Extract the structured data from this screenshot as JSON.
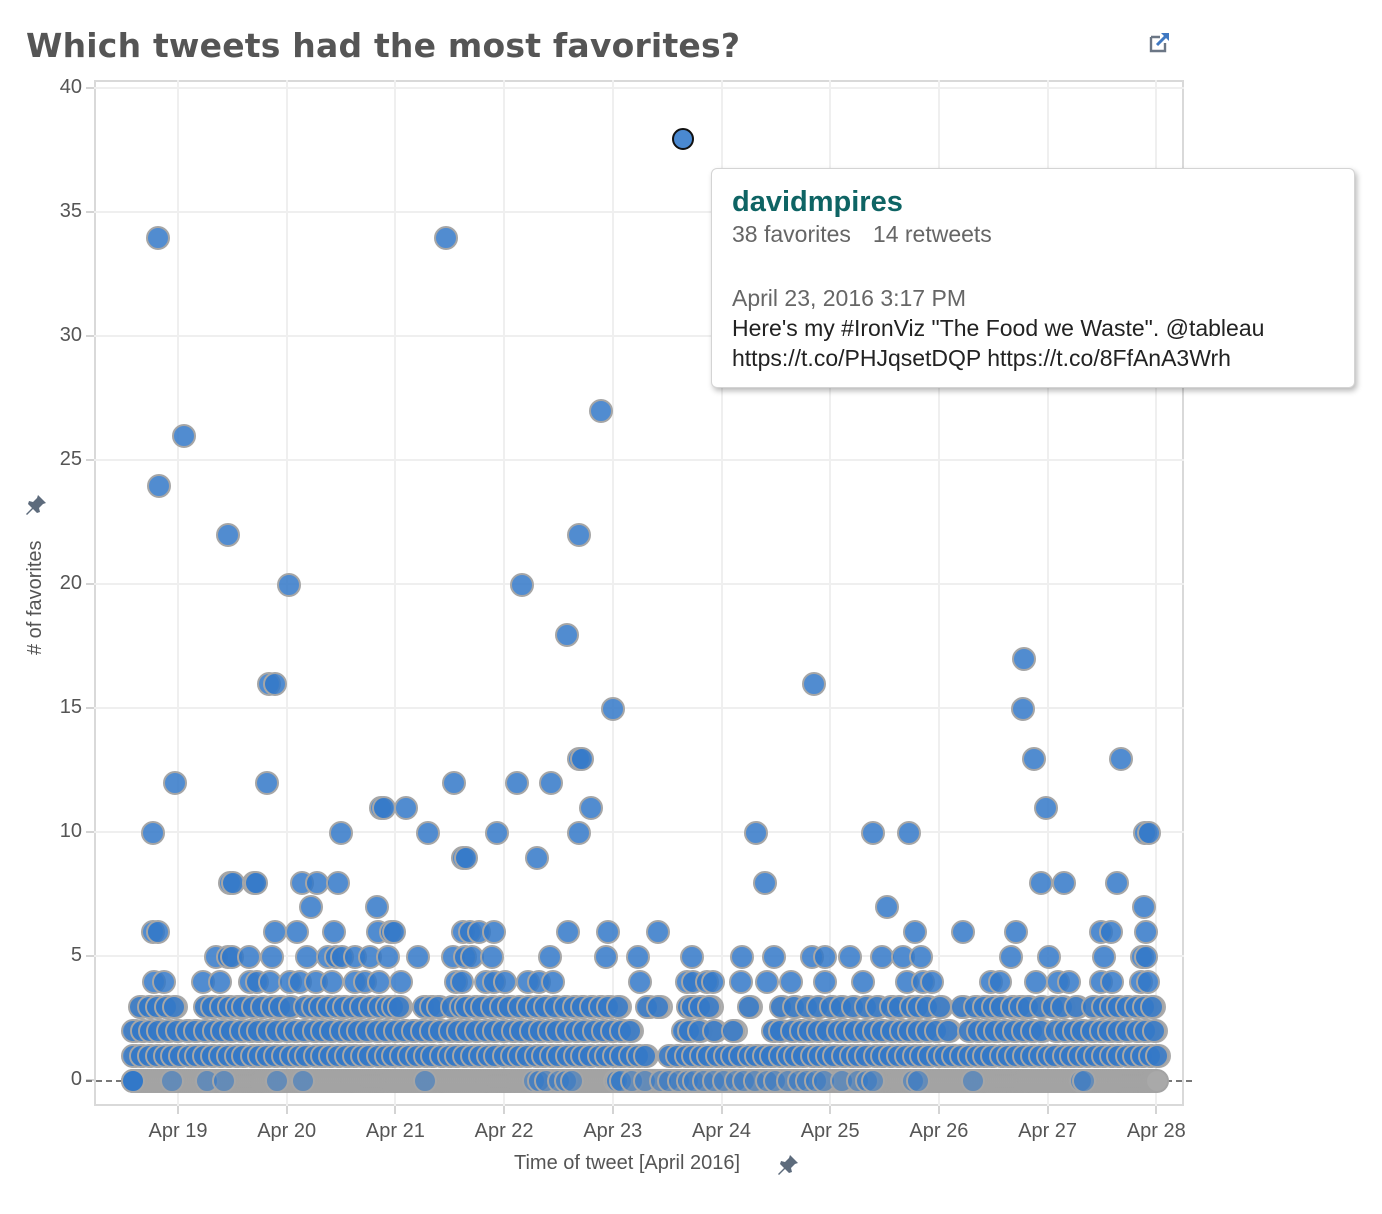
{
  "title": "Which tweets had the most favorites?",
  "toolbar": {
    "export_icon": "external-link-icon"
  },
  "axes": {
    "y_title": "# of favorites",
    "x_title": "Time of tweet [April 2016]",
    "pin_icon": "pushpin-icon",
    "y_ticks": [
      "40",
      "35",
      "30",
      "25",
      "20",
      "15",
      "10",
      "5",
      "0"
    ],
    "x_ticks": [
      "Apr 19",
      "Apr 20",
      "Apr 21",
      "Apr 22",
      "Apr 23",
      "Apr 24",
      "Apr 25",
      "Apr 26",
      "Apr 27",
      "Apr 28"
    ]
  },
  "colors": {
    "point": "#4a89d1",
    "point_dense": "#3278c8",
    "zero_point": "#a9a9a9",
    "title": "#555555",
    "tooltip_user": "#0e6464"
  },
  "tooltip": {
    "user": "davidmpires",
    "favorites": "38 favorites",
    "retweets": "14 retweets",
    "date": "April 23, 2016 3:17 PM",
    "text_line1": "Here's my #IronViz \"The Food we Waste\". @tableau",
    "text_line2": "https://t.co/PHJqsetDQP https://t.co/8FfAnA3Wrh"
  },
  "chart_data": {
    "type": "scatter",
    "title": "Which tweets had the most favorites?",
    "xlabel": "Time of tweet [April 2016]",
    "ylabel": "# of favorites",
    "ylim": [
      0,
      40
    ],
    "xlim_days": [
      18.2,
      28.3
    ],
    "x_tick_labels": [
      "Apr 19",
      "Apr 20",
      "Apr 21",
      "Apr 22",
      "Apr 23",
      "Apr 24",
      "Apr 25",
      "Apr 26",
      "Apr 27",
      "Apr 28"
    ],
    "y_tick_values": [
      0,
      5,
      10,
      15,
      20,
      25,
      30,
      35,
      40
    ],
    "grid": true,
    "highlighted_point": {
      "day": 23.64,
      "favorites": 38,
      "retweets": 14,
      "user": "davidmpires"
    },
    "points": [
      {
        "day": 18.81,
        "y": 34
      },
      {
        "day": 21.46,
        "y": 34
      },
      {
        "day": 22.88,
        "y": 27
      },
      {
        "day": 19.05,
        "y": 26
      },
      {
        "day": 18.82,
        "y": 24
      },
      {
        "day": 19.45,
        "y": 22
      },
      {
        "day": 22.68,
        "y": 22
      },
      {
        "day": 20.01,
        "y": 20
      },
      {
        "day": 22.16,
        "y": 20
      },
      {
        "day": 22.57,
        "y": 18
      },
      {
        "day": 26.77,
        "y": 17
      },
      {
        "day": 19.83,
        "y": 16
      },
      {
        "day": 19.88,
        "y": 16
      },
      {
        "day": 24.84,
        "y": 16
      },
      {
        "day": 22.99,
        "y": 15
      },
      {
        "day": 26.76,
        "y": 15
      },
      {
        "day": 22.68,
        "y": 13
      },
      {
        "day": 22.71,
        "y": 13
      },
      {
        "day": 26.87,
        "y": 13
      },
      {
        "day": 27.67,
        "y": 13
      },
      {
        "day": 18.96,
        "y": 12
      },
      {
        "day": 19.81,
        "y": 12
      },
      {
        "day": 21.53,
        "y": 12
      },
      {
        "day": 22.11,
        "y": 12
      },
      {
        "day": 22.42,
        "y": 12
      },
      {
        "day": 21.09,
        "y": 11
      },
      {
        "day": 20.86,
        "y": 11
      },
      {
        "day": 20.89,
        "y": 11
      },
      {
        "day": 22.79,
        "y": 11
      },
      {
        "day": 26.98,
        "y": 11
      },
      {
        "day": 18.76,
        "y": 10
      },
      {
        "day": 20.49,
        "y": 10
      },
      {
        "day": 21.29,
        "y": 10
      },
      {
        "day": 21.93,
        "y": 10
      },
      {
        "day": 22.68,
        "y": 10
      },
      {
        "day": 24.31,
        "y": 10
      },
      {
        "day": 25.38,
        "y": 10
      },
      {
        "day": 25.72,
        "y": 10
      },
      {
        "day": 27.89,
        "y": 10
      },
      {
        "day": 27.92,
        "y": 10
      },
      {
        "day": 21.61,
        "y": 9
      },
      {
        "day": 21.64,
        "y": 9
      },
      {
        "day": 22.29,
        "y": 9
      },
      {
        "day": 19.47,
        "y": 8
      },
      {
        "day": 19.5,
        "y": 8
      },
      {
        "day": 19.69,
        "y": 8
      },
      {
        "day": 19.71,
        "y": 8
      },
      {
        "day": 20.13,
        "y": 8
      },
      {
        "day": 20.27,
        "y": 8
      },
      {
        "day": 20.46,
        "y": 8
      },
      {
        "day": 24.39,
        "y": 8
      },
      {
        "day": 26.93,
        "y": 8
      },
      {
        "day": 27.14,
        "y": 8
      },
      {
        "day": 27.63,
        "y": 8
      },
      {
        "day": 20.21,
        "y": 7
      },
      {
        "day": 20.82,
        "y": 7
      },
      {
        "day": 25.51,
        "y": 7
      },
      {
        "day": 27.88,
        "y": 7
      }
    ],
    "dense_band_note": "Hundreds of overlapping tweets with 0-6 favorites spread across Apr 18.5-Apr 28"
  },
  "layout_points": {
    "mid": [
      [
        6,
        [
          18.76,
          18.81,
          19.88,
          20.09,
          20.43,
          20.83,
          20.95,
          20.98,
          21.61,
          21.68,
          21.76,
          21.9,
          22.58,
          22.95,
          23.41,
          25.77,
          26.21,
          26.7,
          27.48,
          27.57,
          27.9
        ]
      ],
      [
        5,
        [
          19.34,
          19.45,
          19.49,
          19.64,
          19.86,
          20.18,
          20.37,
          20.44,
          20.5,
          20.62,
          20.76,
          20.92,
          21.2,
          21.52,
          21.63,
          21.7,
          21.88,
          22.41,
          22.93,
          23.22,
          23.72,
          24.18,
          24.47,
          24.82,
          24.94,
          25.17,
          25.47,
          25.66,
          25.83,
          26.65,
          27.0,
          27.51,
          27.86,
          27.9
        ]
      ],
      [
        4,
        [
          18.77,
          18.86,
          19.22,
          19.38,
          19.65,
          19.72,
          19.84,
          20.02,
          20.11,
          20.26,
          20.41,
          20.62,
          20.71,
          20.84,
          21.04,
          21.55,
          21.6,
          21.82,
          21.9,
          22.0,
          22.21,
          22.31,
          22.44,
          23.24,
          23.67,
          23.73,
          23.86,
          23.91,
          24.17,
          24.41,
          24.63,
          24.94,
          25.29,
          25.7,
          25.84,
          25.93,
          26.47,
          26.55,
          26.88,
          27.09,
          27.19,
          27.48,
          27.58,
          27.85,
          27.91
        ]
      ]
    ],
    "low": [
      [
        3,
        [
          18.64,
          18.72,
          18.8,
          18.88,
          18.95,
          19.24,
          19.3,
          19.39,
          19.46,
          19.53,
          19.59,
          19.68,
          19.76,
          19.86,
          19.93,
          20.02,
          20.16,
          20.23,
          20.3,
          20.37,
          20.45,
          20.52,
          20.6,
          20.67,
          20.76,
          20.84,
          20.91,
          20.97,
          21.02,
          21.25,
          21.32,
          21.38,
          21.51,
          21.59,
          21.64,
          21.72,
          21.79,
          21.88,
          21.96,
          22.04,
          22.13,
          22.21,
          22.29,
          22.37,
          22.46,
          22.55,
          22.63,
          22.71,
          22.79,
          22.87,
          22.95,
          23.04,
          23.31,
          23.41,
          23.68,
          23.72,
          23.79,
          23.88,
          24.24,
          24.54,
          24.66,
          24.78,
          24.88,
          25.0,
          25.09,
          25.2,
          25.32,
          25.42,
          25.55,
          25.62,
          25.73,
          25.8,
          25.88,
          26.0,
          26.2,
          26.32,
          26.41,
          26.49,
          26.56,
          26.66,
          26.74,
          26.81,
          26.93,
          27.04,
          27.12,
          27.25,
          27.41,
          27.5,
          27.57,
          27.64,
          27.72,
          27.8,
          27.88,
          27.95
        ]
      ],
      [
        2,
        [
          18.58,
          18.66,
          18.73,
          18.81,
          18.9,
          18.98,
          19.07,
          19.15,
          19.24,
          19.32,
          19.4,
          19.48,
          19.57,
          19.65,
          19.73,
          19.82,
          19.9,
          19.99,
          20.07,
          20.15,
          20.24,
          20.32,
          20.4,
          20.49,
          20.57,
          20.65,
          20.73,
          20.82,
          20.9,
          20.99,
          21.07,
          21.15,
          21.24,
          21.32,
          21.4,
          21.49,
          21.57,
          21.65,
          21.73,
          21.82,
          21.9,
          21.98,
          22.07,
          22.15,
          22.24,
          22.32,
          22.4,
          22.48,
          22.57,
          22.65,
          22.73,
          22.82,
          22.9,
          22.98,
          23.07,
          23.15,
          23.64,
          23.69,
          23.78,
          23.92,
          24.1,
          24.46,
          24.53,
          24.64,
          24.72,
          24.8,
          24.88,
          24.96,
          25.06,
          25.14,
          25.22,
          25.31,
          25.39,
          25.47,
          25.56,
          25.64,
          25.72,
          25.8,
          25.88,
          25.96,
          26.07,
          26.27,
          26.35,
          26.43,
          26.51,
          26.6,
          26.68,
          26.76,
          26.85,
          26.93,
          27.07,
          27.15,
          27.23,
          27.31,
          27.4,
          27.48,
          27.56,
          27.64,
          27.72,
          27.81,
          27.89,
          27.97
        ]
      ],
      [
        1,
        [
          18.58,
          18.65,
          18.72,
          18.8,
          18.87,
          18.94,
          19.01,
          19.09,
          19.16,
          19.23,
          19.3,
          19.38,
          19.45,
          19.52,
          19.59,
          19.67,
          19.74,
          19.81,
          19.88,
          19.96,
          20.03,
          20.1,
          20.17,
          20.25,
          20.32,
          20.39,
          20.46,
          20.54,
          20.61,
          20.68,
          20.75,
          20.83,
          20.9,
          20.97,
          21.04,
          21.12,
          21.19,
          21.26,
          21.33,
          21.41,
          21.48,
          21.55,
          21.62,
          21.7,
          21.77,
          21.84,
          21.91,
          21.99,
          22.06,
          22.13,
          22.2,
          22.28,
          22.35,
          22.42,
          22.49,
          22.57,
          22.64,
          22.71,
          22.78,
          22.86,
          22.93,
          23.0,
          23.07,
          23.15,
          23.22,
          23.29,
          23.51,
          23.58,
          23.66,
          23.73,
          23.8,
          23.87,
          23.95,
          24.02,
          24.09,
          24.16,
          24.24,
          24.31,
          24.38,
          24.45,
          24.53,
          24.6,
          24.67,
          24.74,
          24.82,
          24.89,
          24.96,
          25.03,
          25.11,
          25.18,
          25.25,
          25.32,
          25.4,
          25.47,
          25.54,
          25.61,
          25.69,
          25.76,
          25.83,
          25.9,
          25.98,
          26.05,
          26.12,
          26.19,
          26.27,
          26.34,
          26.41,
          26.48,
          26.56,
          26.63,
          26.7,
          26.77,
          26.85,
          26.92,
          26.99,
          27.06,
          27.14,
          27.21,
          27.28,
          27.35,
          27.43,
          27.5,
          27.57,
          27.64,
          27.72,
          27.79,
          27.86,
          27.93,
          28.0
        ]
      ]
    ],
    "zero_range": [
      18.58,
      28.01
    ],
    "zero_blue_accents": [
      18.58,
      18.94,
      19.26,
      19.41,
      19.9,
      20.14,
      21.26,
      22.27,
      22.31,
      22.38,
      22.5,
      22.56,
      22.62,
      23.01,
      23.03,
      23.07,
      23.17,
      23.29,
      23.43,
      23.51,
      23.6,
      23.68,
      23.74,
      23.83,
      23.92,
      24.01,
      24.12,
      24.2,
      24.3,
      24.41,
      24.48,
      24.6,
      24.7,
      24.78,
      24.86,
      24.93,
      25.1,
      25.25,
      25.33,
      25.38,
      25.75,
      25.8,
      26.3,
      27.3,
      27.33
    ]
  }
}
